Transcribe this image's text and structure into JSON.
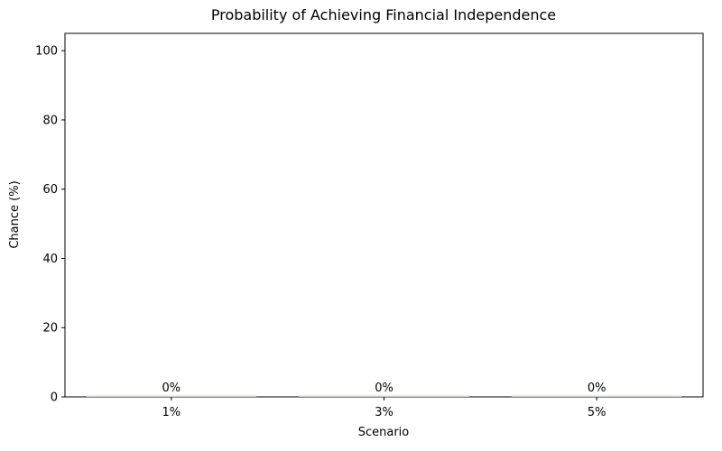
{
  "page": {
    "background": "#ffffff"
  },
  "chart_data": {
    "type": "bar",
    "title": "Probability of Achieving Financial Independence",
    "xlabel": "Scenario",
    "ylabel": "Chance (%)",
    "categories": [
      "1%",
      "3%",
      "5%"
    ],
    "values": [
      0,
      0,
      0
    ],
    "bar_value_labels": [
      "0%",
      "0%",
      "0%"
    ],
    "yticks": [
      0,
      20,
      40,
      60,
      80,
      100
    ],
    "ylim": [
      0,
      105
    ],
    "grid": false,
    "legend_position": "none",
    "bar_color": "#d3d8d3",
    "axis_color": "#000000",
    "text_color": "#000000"
  }
}
